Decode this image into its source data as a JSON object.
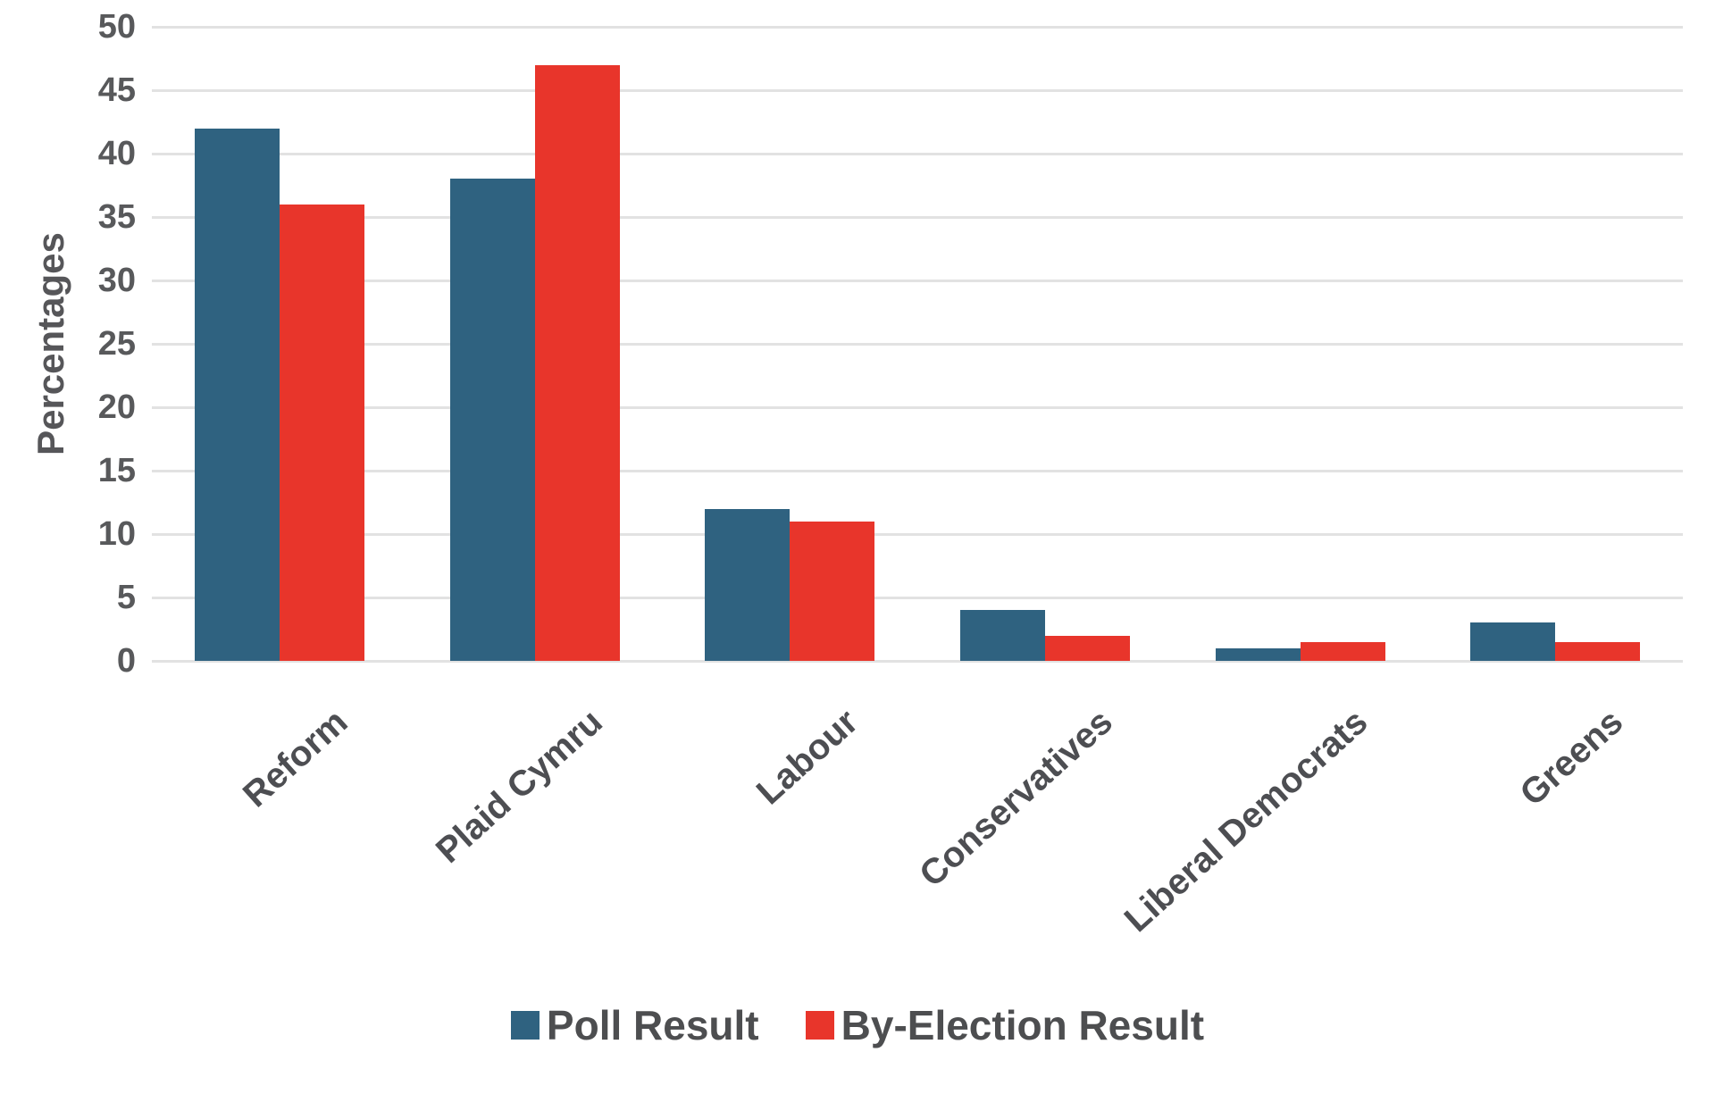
{
  "chart_data": {
    "type": "bar",
    "title": "",
    "categories": [
      "Reform",
      "Plaid Cymru",
      "Labour",
      "Conservatives",
      "Liberal Democrats",
      "Greens"
    ],
    "series": [
      {
        "name": "Poll Result",
        "color": "#2f6280",
        "values": [
          42,
          38,
          12,
          4,
          1,
          3
        ]
      },
      {
        "name": "By-Election Result",
        "color": "#e8352b",
        "values": [
          36,
          47,
          11,
          2,
          1.5,
          1.5
        ]
      }
    ],
    "xlabel": "",
    "ylabel": "Percentages",
    "ylim": [
      0,
      50
    ],
    "ytick_step": 5,
    "yticks": [
      0,
      5,
      10,
      15,
      20,
      25,
      30,
      35,
      40,
      45,
      50
    ],
    "grid": "horizontal",
    "legend_position": "bottom"
  },
  "colors": {
    "background": "#ffffff",
    "gridline": "#e2e2e2",
    "tick_text": "#58595b",
    "category_text": "#4d4e52",
    "legend_text": "#4d4e50"
  }
}
